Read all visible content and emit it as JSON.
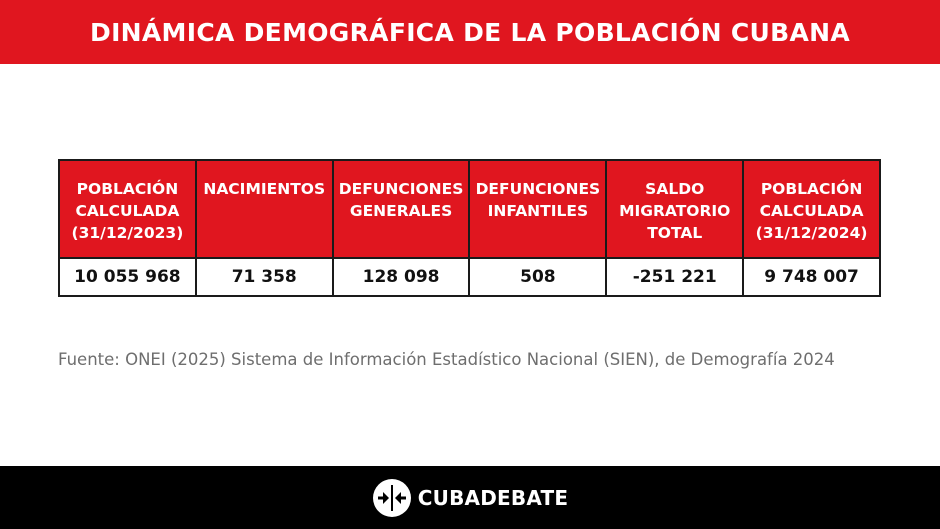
{
  "title": "DINÁMICA DEMOGRÁFICA DE LA POBLACIÓN CUBANA",
  "table": {
    "headers": [
      "POBLACIÓN\nCALCULADA\n(31/12/2023)",
      "NACIMIENTOS",
      "DEFUNCIONES\nGENERALES",
      "DEFUNCIONES\nINFANTILES",
      "SALDO\nMIGRATORIO\nTOTAL",
      "POBLACIÓN\nCALCULADA\n(31/12/2024)"
    ],
    "values": [
      "10 055 968",
      "71 358",
      "128 098",
      "508",
      "-251 221",
      "9 748 007"
    ]
  },
  "source": "Fuente: ONEI (2025) Sistema de Información Estadístico Nacional (SIEN), de Demografía 2024",
  "footer": {
    "brand": "CUBADEBATE"
  },
  "colors": {
    "accent": "#e0161f",
    "footer_bg": "#000000",
    "source_text": "#6e6e6e"
  }
}
